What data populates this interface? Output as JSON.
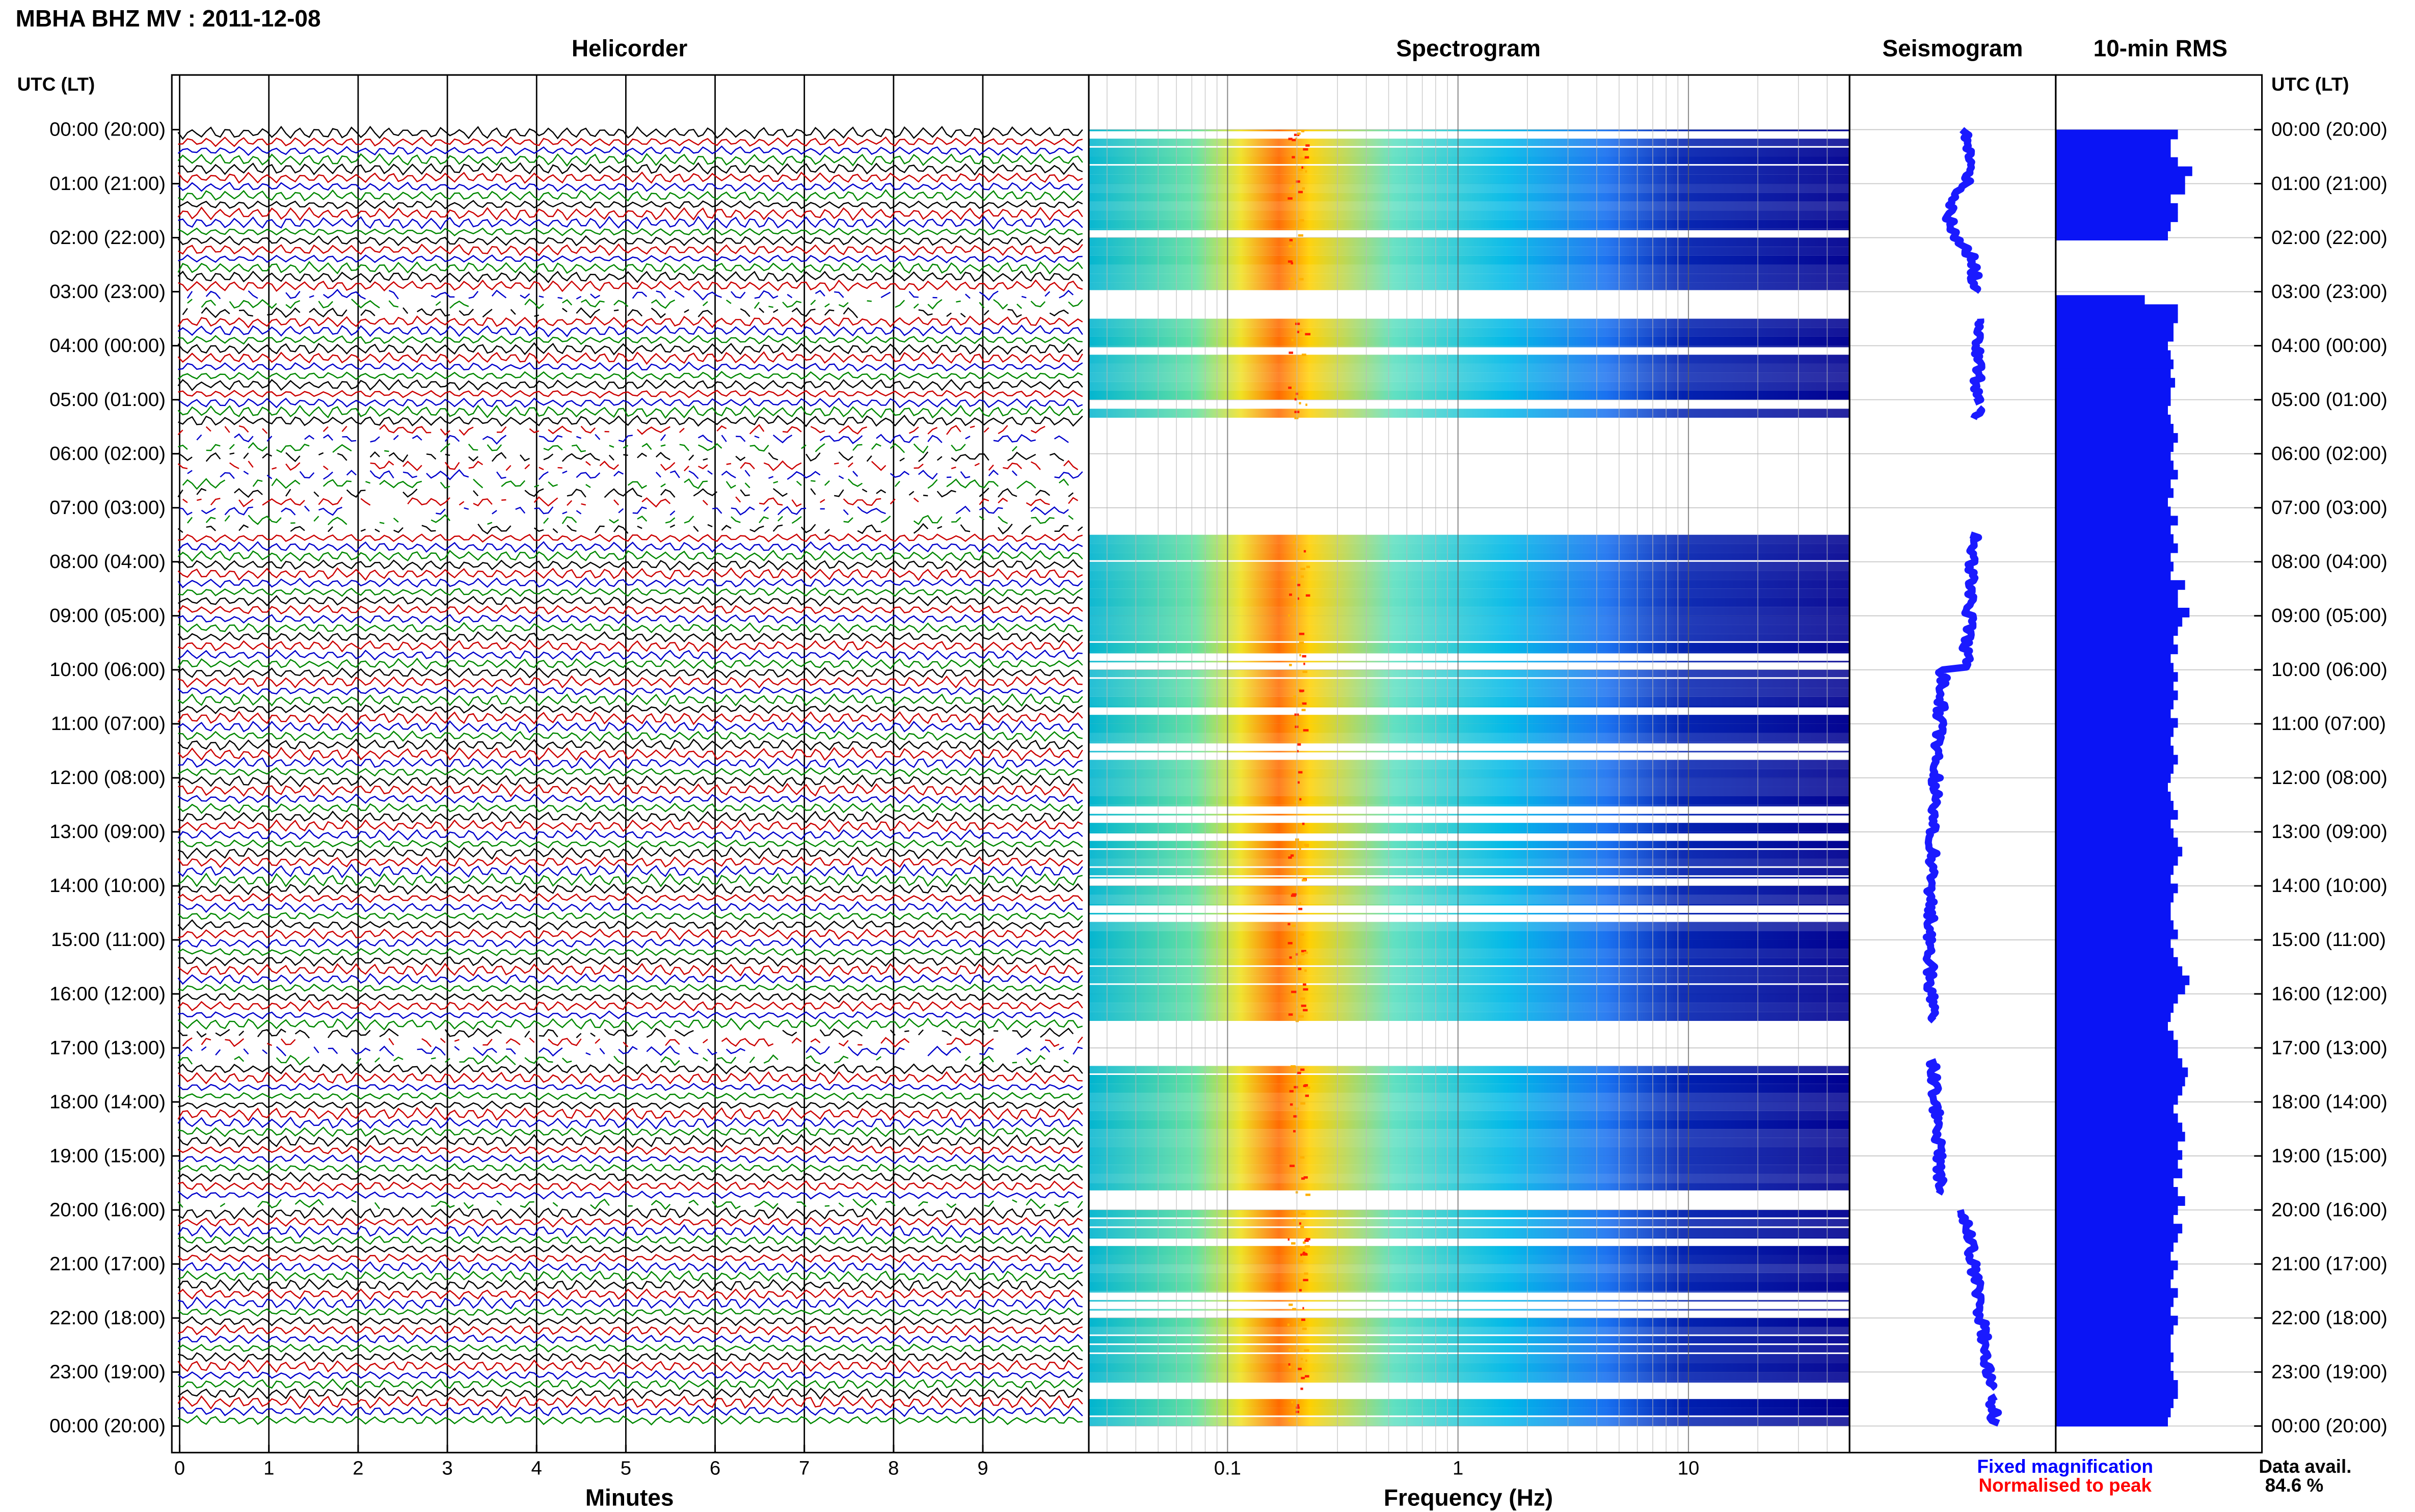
{
  "header": {
    "title": "MBHA BHZ MV : 2011-12-08"
  },
  "panels": {
    "helicorder": "Helicorder",
    "spectrogram": "Spectrogram",
    "seismogram": "Seismogram",
    "rms": "10-min RMS"
  },
  "axis": {
    "utc_header_left": "UTC (LT)",
    "utc_header_right": "UTC (LT)",
    "minutes_label": "Minutes",
    "frequency_label": "Frequency (Hz)"
  },
  "legend": {
    "fixed": "Fixed magnification",
    "normalised": "Normalised to peak",
    "fixed_color": "#0000ff",
    "normalised_color": "#ff0000"
  },
  "availability": {
    "label": "Data avail.",
    "value": "84.6 %"
  },
  "trace_colors": [
    "#000000",
    "#cc0000",
    "#0000cc",
    "#008800"
  ],
  "spectrogram_colors": {
    "low": "#0000a0",
    "mid": "#00c8e8",
    "high": "#ffd200",
    "peak": "#ff3000"
  },
  "chart_data": {
    "type": "heatmap",
    "time_labels": [
      "00:00 (20:00)",
      "01:00 (21:00)",
      "02:00 (22:00)",
      "03:00 (23:00)",
      "04:00 (00:00)",
      "05:00 (01:00)",
      "06:00 (02:00)",
      "07:00 (03:00)",
      "08:00 (04:00)",
      "09:00 (05:00)",
      "10:00 (06:00)",
      "11:00 (07:00)",
      "12:00 (08:00)",
      "13:00 (09:00)",
      "14:00 (10:00)",
      "15:00 (11:00)",
      "16:00 (12:00)",
      "17:00 (13:00)",
      "18:00 (14:00)",
      "19:00 (15:00)",
      "20:00 (16:00)",
      "21:00 (17:00)",
      "22:00 (18:00)",
      "23:00 (19:00)",
      "00:00 (20:00)"
    ],
    "minutes_ticks": [
      "0",
      "1",
      "2",
      "3",
      "4",
      "5",
      "6",
      "7",
      "8",
      "9"
    ],
    "freq_ticks": [
      "0.1",
      "1",
      "10"
    ],
    "freq_range_hz": [
      0.025,
      50
    ],
    "freq_log_scale": true,
    "spectral_peak_hz": 0.2,
    "rms_10min": [
      0.85,
      0.8,
      0.8,
      0.85,
      0.95,
      0.9,
      0.9,
      0.8,
      0.85,
      0.85,
      0.8,
      0.78,
      null,
      null,
      null,
      null,
      null,
      null,
      0.62,
      0.85,
      0.85,
      0.82,
      0.82,
      0.78,
      0.8,
      0.82,
      0.8,
      0.83,
      0.8,
      0.8,
      0.78,
      0.8,
      0.82,
      0.85,
      0.82,
      0.8,
      0.82,
      0.85,
      0.8,
      0.82,
      0.78,
      0.8,
      0.85,
      0.8,
      0.82,
      0.85,
      0.8,
      0.82,
      0.8,
      0.9,
      0.85,
      0.85,
      0.93,
      0.88,
      0.85,
      0.82,
      0.85,
      0.8,
      0.82,
      0.85,
      0.82,
      0.85,
      0.82,
      0.8,
      0.85,
      0.82,
      0.8,
      0.82,
      0.85,
      0.82,
      0.8,
      0.78,
      0.8,
      0.82,
      0.85,
      0.8,
      0.82,
      0.85,
      0.88,
      0.85,
      0.82,
      0.8,
      0.85,
      0.82,
      0.8,
      0.8,
      0.82,
      0.85,
      0.8,
      0.82,
      0.85,
      0.88,
      0.93,
      0.9,
      0.85,
      0.82,
      0.8,
      0.78,
      0.82,
      0.85,
      0.85,
      0.88,
      0.92,
      0.9,
      0.88,
      0.85,
      0.82,
      0.85,
      0.88,
      0.9,
      0.85,
      0.88,
      0.85,
      0.88,
      0.82,
      0.85,
      0.9,
      0.85,
      0.82,
      0.88,
      0.85,
      0.82,
      0.8,
      0.85,
      0.82,
      0.8,
      0.85,
      0.82,
      0.8,
      0.85,
      0.82,
      0.8,
      0.8,
      0.82,
      0.8,
      0.82,
      0.85,
      0.85,
      0.82,
      0.8,
      0.78
    ]
  }
}
